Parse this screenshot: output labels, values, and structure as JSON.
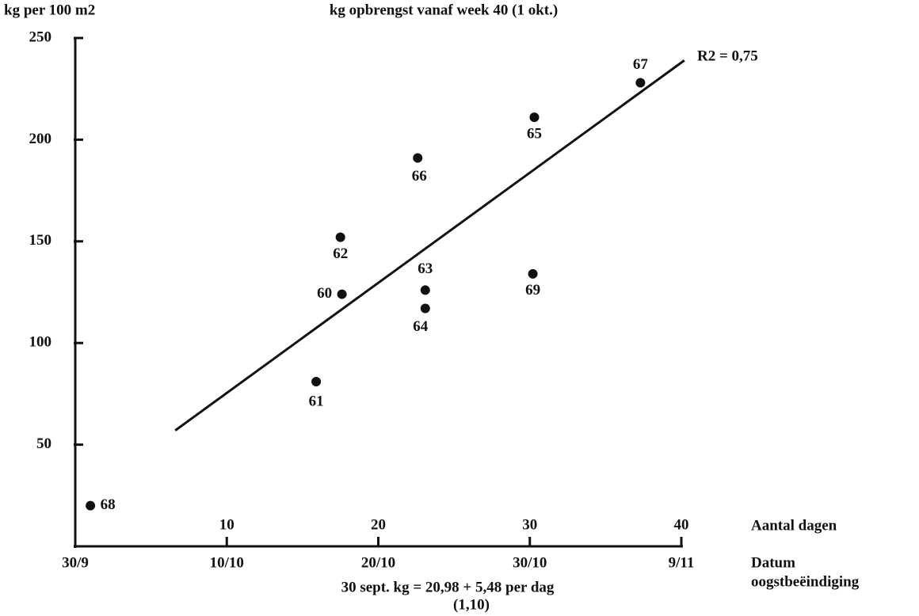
{
  "chart_data": {
    "type": "scatter",
    "title": "kg opbrengst vanaf week 40 (1 okt.)",
    "ylabel": "kg per 100 m2",
    "xlabel": "Aantal dagen",
    "x2label": [
      "Datum",
      "oogstbeëindiging"
    ],
    "formula": "30 sept. kg = 20,98 + 5,48 per dag",
    "formula_note": "(1,10)",
    "r2_label": "R2 = 0,75",
    "labels": [
      "68",
      "61",
      "60",
      "62",
      "66",
      "63",
      "64",
      "65",
      "69",
      "67"
    ],
    "x": [
      1,
      15.9,
      17.6,
      17.5,
      22.6,
      23.1,
      23.1,
      30.3,
      30.2,
      37.3
    ],
    "y": [
      20,
      81,
      124,
      152,
      191,
      126,
      117,
      211,
      134,
      228
    ],
    "color": "#111111",
    "trend": {
      "x": [
        6.6,
        40.2
      ],
      "y": [
        57,
        239
      ]
    },
    "xlim": [
      0,
      40
    ],
    "ylim": [
      0,
      250
    ],
    "xticks": [
      10,
      20,
      30,
      40
    ],
    "x2ticks": [
      {
        "value": 0,
        "label": "30/9"
      },
      {
        "value": 10,
        "label": "10/10"
      },
      {
        "value": 20,
        "label": "20/10"
      },
      {
        "value": 30,
        "label": "30/10"
      },
      {
        "value": 40,
        "label": "9/11"
      }
    ],
    "yticks": [
      50,
      100,
      150,
      200,
      250
    ]
  }
}
